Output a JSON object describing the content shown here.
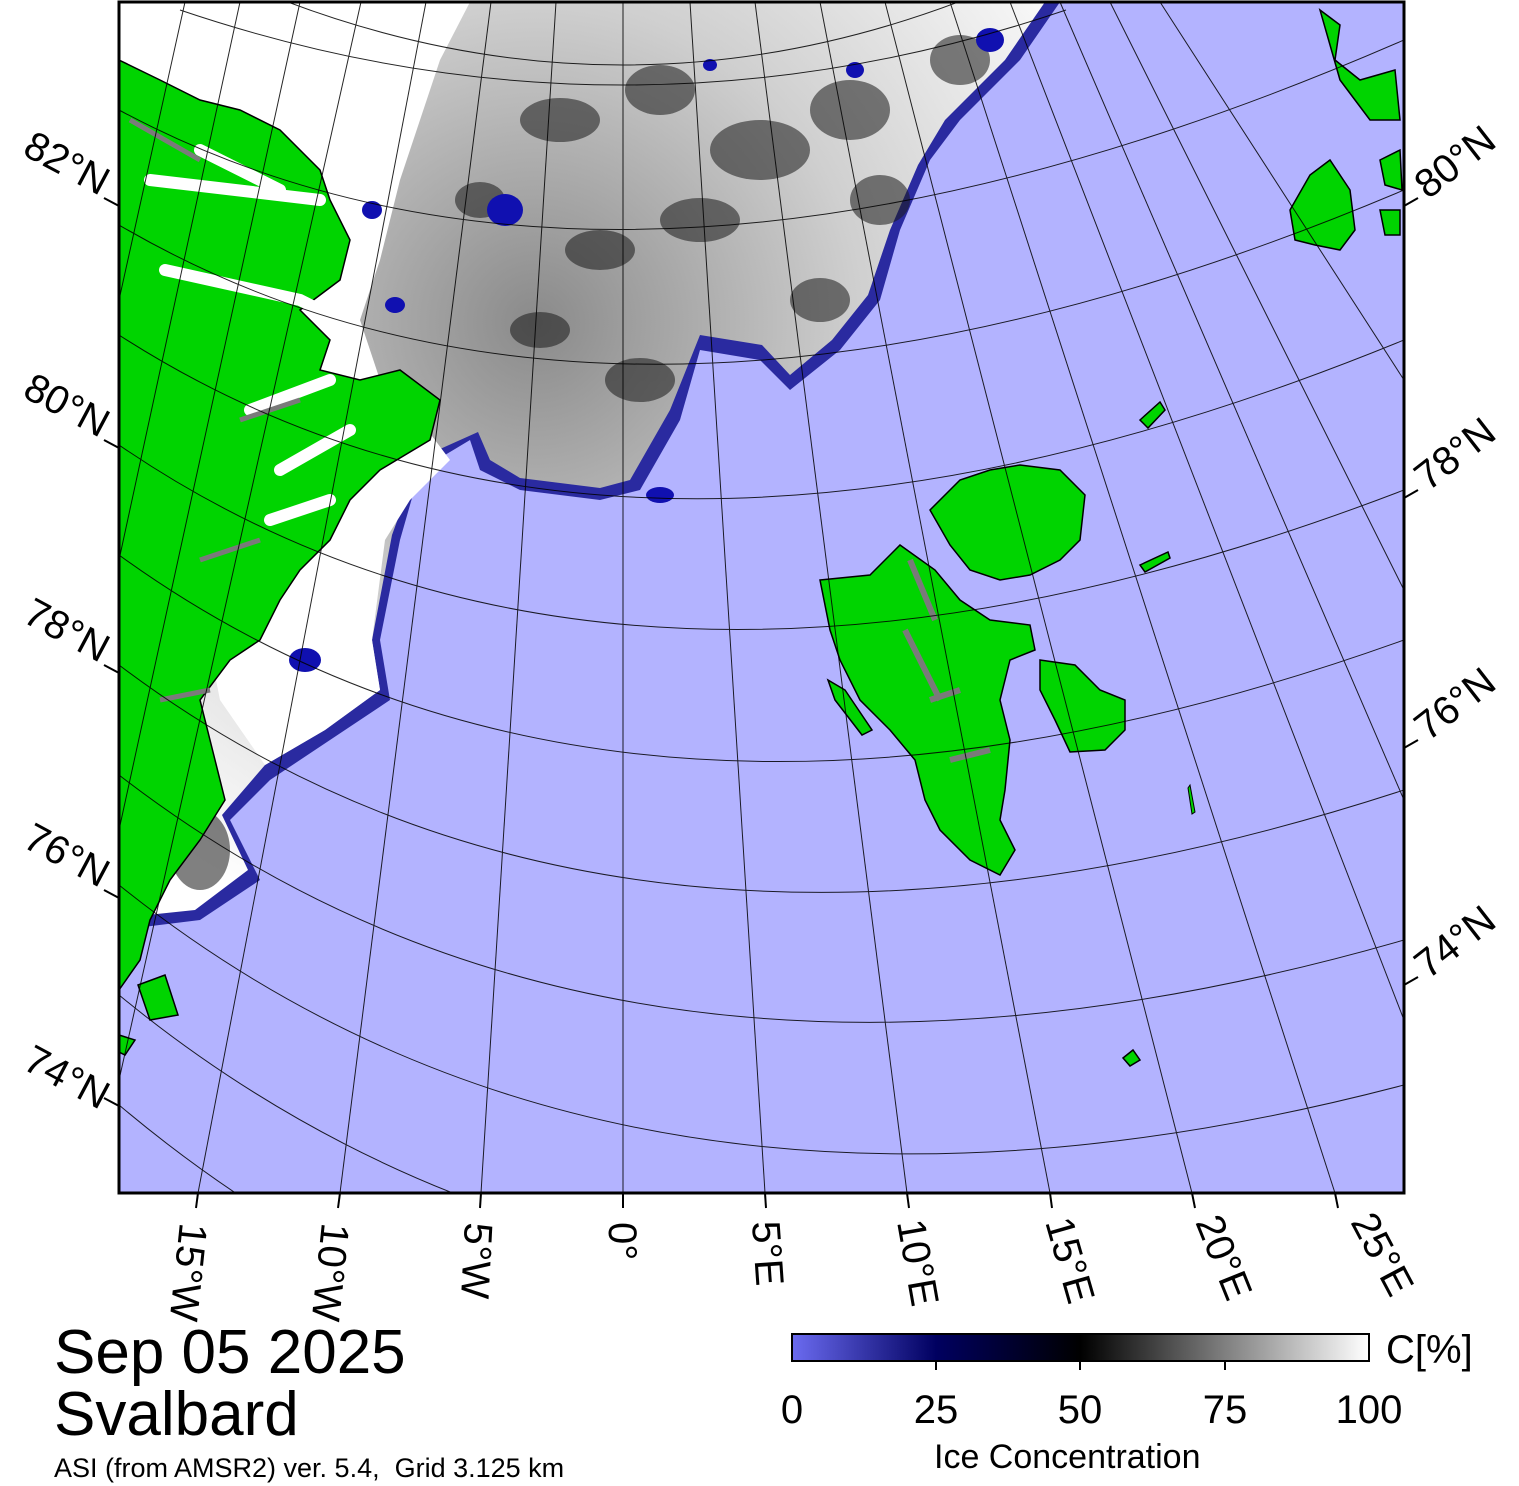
{
  "title": {
    "date": "Sep 05 2025",
    "region": "Svalbard",
    "source": "ASI (from AMSR2) ver. 5.4,  Grid 3.125 km"
  },
  "colorbar": {
    "title": "Ice Concentration",
    "unit": "C[%]",
    "ticks": [
      "0",
      "25",
      "50",
      "75",
      "100"
    ],
    "stops": [
      "#6b6bf0",
      "#000060",
      "#000000",
      "#7f7f7f",
      "#ffffff"
    ]
  },
  "map": {
    "lat_labels_left": [
      "82°N",
      "80°N",
      "78°N",
      "76°N",
      "74°N"
    ],
    "lat_labels_right": [
      "80°N",
      "78°N",
      "76°N",
      "74°N"
    ],
    "lon_labels": [
      "15°W",
      "10°W",
      "5°W",
      "0°",
      "5°E",
      "10°E",
      "15°E",
      "20°E",
      "25°E"
    ],
    "colors": {
      "ocean": "#b3b3ff",
      "land": "#00d400",
      "ice": "#ffffff",
      "coast": "#000000",
      "glacier": "#7a7a7a"
    }
  }
}
